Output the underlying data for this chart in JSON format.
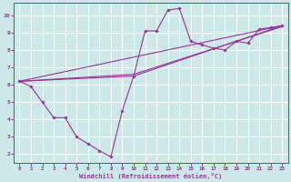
{
  "bg_color": "#cce8e8",
  "grid_color": "#ffffff",
  "line_color": "#993399",
  "xlabel": "Windchill (Refroidissement éolien,°C)",
  "xlim": [
    -0.5,
    23.5
  ],
  "ylim": [
    1.5,
    10.7
  ],
  "xticks": [
    0,
    1,
    2,
    3,
    4,
    5,
    6,
    7,
    8,
    9,
    10,
    11,
    12,
    13,
    14,
    15,
    16,
    17,
    18,
    19,
    20,
    21,
    22,
    23
  ],
  "yticks": [
    2,
    3,
    4,
    5,
    6,
    7,
    8,
    9,
    10
  ],
  "curve1_x": [
    0,
    1,
    2,
    3,
    4,
    5,
    6,
    7,
    8,
    9,
    10,
    11,
    12,
    13,
    14,
    15,
    16,
    17,
    18,
    19,
    20,
    21,
    22,
    23
  ],
  "curve1_y": [
    6.2,
    5.9,
    5.0,
    4.1,
    4.1,
    3.0,
    2.6,
    2.2,
    1.85,
    4.5,
    6.5,
    9.1,
    9.1,
    10.3,
    10.4,
    8.5,
    8.3,
    8.1,
    8.0,
    8.5,
    8.4,
    9.2,
    9.3,
    9.4
  ],
  "line1_x": [
    0,
    23
  ],
  "line1_y": [
    6.2,
    9.4
  ],
  "line2_x": [
    0,
    10,
    23
  ],
  "line2_y": [
    6.2,
    6.5,
    9.4
  ],
  "line3_x": [
    0,
    10,
    23
  ],
  "line3_y": [
    6.2,
    6.6,
    9.35
  ]
}
